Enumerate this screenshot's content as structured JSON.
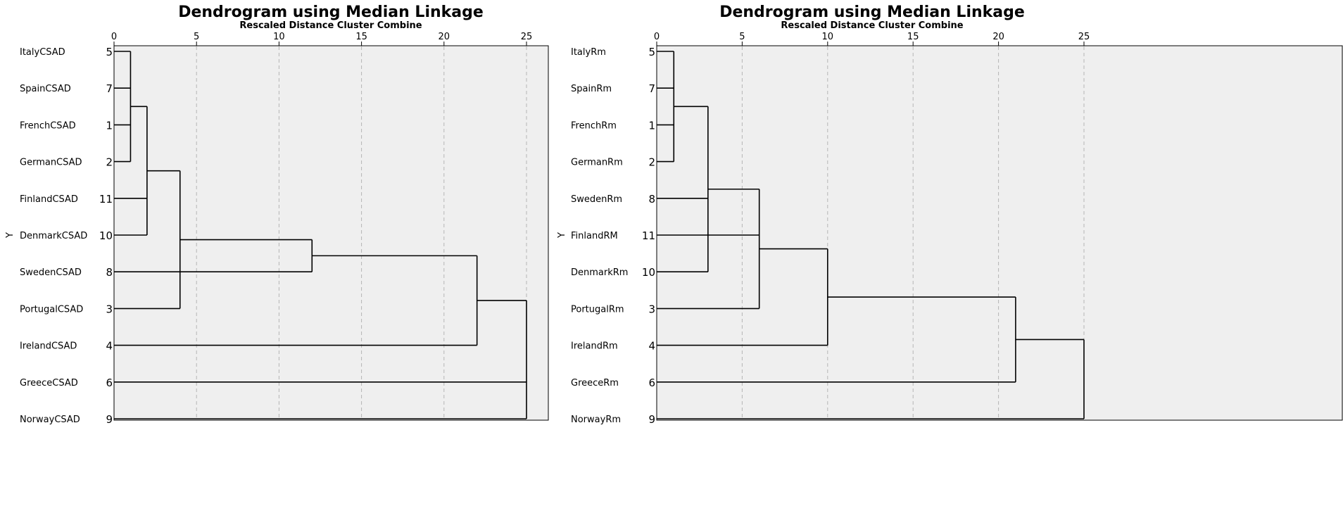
{
  "chart_data": [
    {
      "type": "dendrogram",
      "title": "Dendrogram using Median Linkage",
      "subtitle": "Rescaled Distance Cluster Combine",
      "ylabel": "Y",
      "xlim": [
        0,
        25
      ],
      "x_ticks": [
        0,
        5,
        10,
        15,
        20,
        25
      ],
      "grid": true,
      "leaves": [
        {
          "name": "ItalyCSAD",
          "id": "5"
        },
        {
          "name": "SpainCSAD",
          "id": "7"
        },
        {
          "name": "FrenchCSAD",
          "id": "1"
        },
        {
          "name": "GermanCSAD",
          "id": "2"
        },
        {
          "name": "FinlandCSAD",
          "id": "11"
        },
        {
          "name": "DenmarkCSAD",
          "id": "10"
        },
        {
          "name": "SwedenCSAD",
          "id": "8"
        },
        {
          "name": "PortugalCSAD",
          "id": "3"
        },
        {
          "name": "IrelandCSAD",
          "id": "4"
        },
        {
          "name": "GreeceCSAD",
          "id": "6"
        },
        {
          "name": "NorwayCSAD",
          "id": "9"
        }
      ],
      "merges": [
        {
          "distance": 1.0,
          "members": [
            0,
            1,
            2,
            3
          ]
        },
        {
          "distance": 2.0,
          "members": [
            "m0",
            4,
            5
          ]
        },
        {
          "distance": 4.0,
          "members": [
            "m1",
            7
          ]
        },
        {
          "distance": 12.0,
          "members": [
            6,
            "m2"
          ]
        },
        {
          "distance": 22.0,
          "members": [
            "m3",
            8
          ]
        },
        {
          "distance": 25.0,
          "members": [
            "m4",
            9,
            10
          ]
        }
      ]
    },
    {
      "type": "dendrogram",
      "title": "Dendrogram using Median Linkage",
      "subtitle": "Rescaled Distance Cluster Combine",
      "ylabel": "Y",
      "xlim": [
        0,
        25
      ],
      "x_ticks": [
        0,
        5,
        10,
        15,
        20,
        25
      ],
      "grid": true,
      "leaves": [
        {
          "name": "ItalyRm",
          "id": "5"
        },
        {
          "name": "SpainRm",
          "id": "7"
        },
        {
          "name": "FrenchRm",
          "id": "1"
        },
        {
          "name": "GermanRm",
          "id": "2"
        },
        {
          "name": "SwedenRm",
          "id": "8"
        },
        {
          "name": "FinlandRM",
          "id": "11"
        },
        {
          "name": "DenmarkRm",
          "id": "10"
        },
        {
          "name": "PortugalRm",
          "id": "3"
        },
        {
          "name": "IrelandRm",
          "id": "4"
        },
        {
          "name": "GreeceRm",
          "id": "6"
        },
        {
          "name": "NorwayRm",
          "id": "9"
        }
      ],
      "merges": [
        {
          "distance": 1.0,
          "members": [
            0,
            1,
            2,
            3
          ]
        },
        {
          "distance": 3.0,
          "members": [
            "m0",
            4,
            6
          ]
        },
        {
          "distance": 6.0,
          "members": [
            5,
            "m1",
            7
          ]
        },
        {
          "distance": 10.0,
          "members": [
            "m2",
            8
          ]
        },
        {
          "distance": 21.0,
          "members": [
            "m3",
            9
          ]
        },
        {
          "distance": 25.0,
          "members": [
            "m4",
            10
          ]
        }
      ]
    }
  ]
}
